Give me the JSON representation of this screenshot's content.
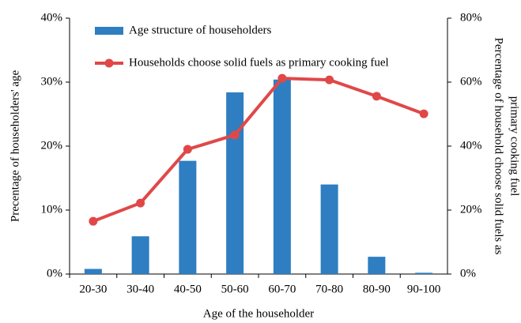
{
  "chart_data": {
    "type": "bar",
    "x_label": "Age of the householder",
    "y_label": "Precentage of  householders' age",
    "y2_label": [
      "Percentage of household  choose solid fuels as",
      "primary cooking fuel"
    ],
    "categories": [
      "20-30",
      "30-40",
      "40-50",
      "50-60",
      "60-70",
      "70-80",
      "80-90",
      "90-100"
    ],
    "series": [
      {
        "name": "Age structure of householders",
        "type": "bar",
        "color": "#2e7ec1",
        "values": [
          0.8,
          5.9,
          17.7,
          28.4,
          30.4,
          14.0,
          2.7,
          0.2
        ]
      },
      {
        "name": "Households choose solid fuels as primary cooking fuel",
        "type": "line",
        "axis": "y2",
        "color": "#e04848",
        "values": [
          16.5,
          22.2,
          39.0,
          43.5,
          61.2,
          60.7,
          55.6,
          50.1
        ]
      }
    ],
    "ylim": [
      0,
      40
    ],
    "yticks": [
      {
        "value": 0,
        "label": "0%"
      },
      {
        "value": 10,
        "label": "10%"
      },
      {
        "value": 20,
        "label": "20%"
      },
      {
        "value": 30,
        "label": "30%"
      },
      {
        "value": 40,
        "label": "40%"
      }
    ],
    "y2lim": [
      0,
      80
    ],
    "y2ticks": [
      {
        "value": 0,
        "label": "0%"
      },
      {
        "value": 20,
        "label": "20%"
      },
      {
        "value": 40,
        "label": "40%"
      },
      {
        "value": 60,
        "label": "60%"
      },
      {
        "value": 80,
        "label": "80%"
      }
    ],
    "grid": false,
    "legend": "top-left"
  }
}
